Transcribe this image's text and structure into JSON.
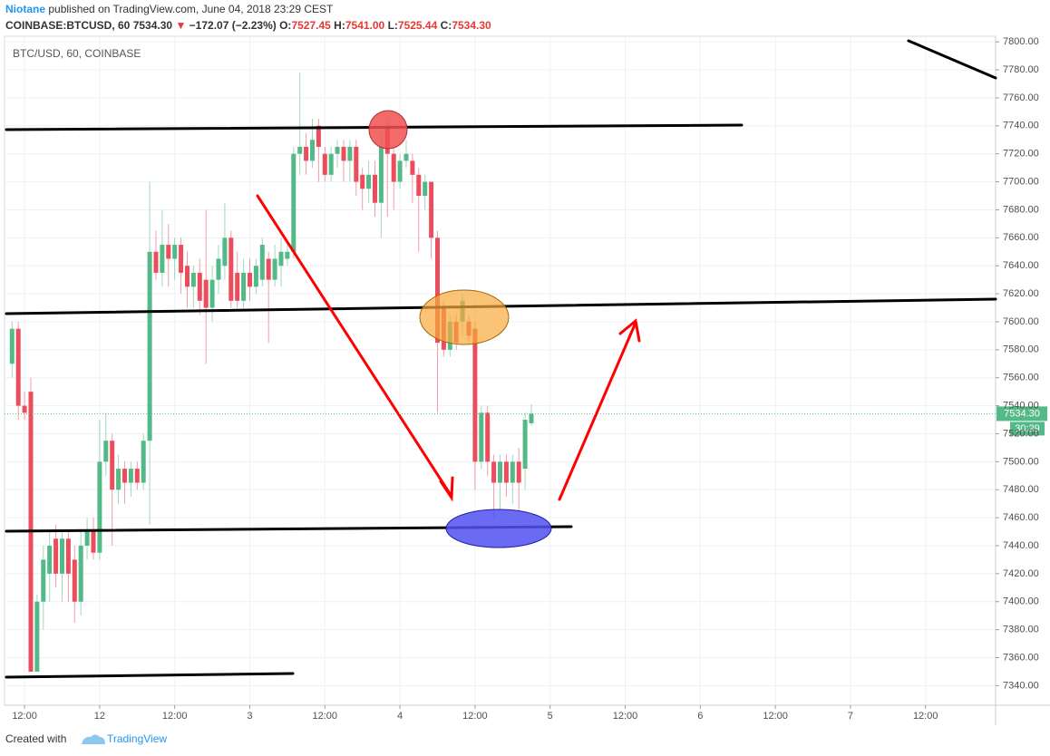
{
  "header": {
    "author": "Niotane",
    "published": "published on TradingView.com, June 04, 2018 23:29 CEST",
    "symbol": "COINBASE:BTCUSD, 60",
    "last": "7534.30",
    "arrow": "▼",
    "change": "−172.07 (−2.23%)",
    "o_label": "O:",
    "open": "7527.45",
    "h_label": "H:",
    "high": "7541.00",
    "l_label": "L:",
    "low": "7525.44",
    "c_label": "C:",
    "close": "7534.30"
  },
  "footer": {
    "created": "Created with",
    "brand": "TradingView"
  },
  "chart_data": {
    "type": "candlestick",
    "title": "BTC/USD, 60, COINBASE",
    "up_color": "#53b987",
    "down_color": "#eb4d5c",
    "grid": true,
    "x": [
      -2,
      -1,
      0,
      1,
      2,
      3,
      4,
      5,
      6,
      7,
      8,
      9,
      10,
      11,
      12,
      13,
      14,
      15,
      16,
      17,
      18,
      19,
      20,
      21,
      22,
      23,
      24,
      25,
      26,
      27,
      28,
      29,
      30,
      31,
      32,
      33,
      34,
      35,
      36,
      37,
      38,
      39,
      40,
      41,
      42,
      43,
      44,
      45,
      46,
      47,
      48,
      49,
      50,
      51,
      52,
      53,
      54,
      55,
      56,
      57,
      58,
      59,
      60,
      61,
      62,
      63,
      64,
      65,
      66,
      67,
      68,
      69,
      70,
      71,
      72,
      73,
      74,
      75,
      76,
      77,
      78,
      79,
      80,
      81
    ],
    "open": [
      7570,
      7595,
      7540,
      7550,
      7350,
      7400,
      7420,
      7445,
      7420,
      7445,
      7430,
      7400,
      7440,
      7450,
      7435,
      7500,
      7515,
      7480,
      7495,
      7485,
      7495,
      7485,
      7515,
      7650,
      7635,
      7655,
      7645,
      7655,
      7640,
      7625,
      7635,
      7630,
      7610,
      7630,
      7640,
      7660,
      7635,
      7615,
      7635,
      7625,
      7630,
      7645,
      7630,
      7640,
      7645,
      7650,
      7720,
      7725,
      7715,
      7740,
      7720,
      7705,
      7720,
      7725,
      7715,
      7725,
      7705,
      7695,
      7705,
      7685,
      7740,
      7720,
      7700,
      7715,
      7715,
      7705,
      7690,
      7700,
      7660,
      7610,
      7580,
      7600,
      7600,
      7600,
      7595,
      7500,
      7535,
      7500,
      7485,
      7500,
      7485,
      7500,
      7495,
      7527.45
    ],
    "high": [
      7600,
      7600,
      7550,
      7560,
      7405,
      7440,
      7450,
      7455,
      7450,
      7450,
      7440,
      7450,
      7460,
      7460,
      7530,
      7535,
      7520,
      7505,
      7500,
      7500,
      7500,
      7520,
      7700,
      7665,
      7680,
      7670,
      7660,
      7660,
      7650,
      7640,
      7645,
      7680,
      7640,
      7655,
      7685,
      7665,
      7650,
      7645,
      7645,
      7645,
      7660,
      7650,
      7655,
      7660,
      7655,
      7725,
      7778,
      7735,
      7745,
      7745,
      7725,
      7725,
      7730,
      7730,
      7730,
      7730,
      7710,
      7715,
      7715,
      7740,
      7745,
      7725,
      7720,
      7730,
      7720,
      7710,
      7705,
      7700,
      7665,
      7615,
      7605,
      7605,
      7620,
      7605,
      7600,
      7540,
      7540,
      7505,
      7505,
      7505,
      7505,
      7510,
      7535,
      7541
    ],
    "low": [
      7560,
      7530,
      7530,
      7350,
      7350,
      7380,
      7400,
      7410,
      7400,
      7400,
      7385,
      7390,
      7430,
      7430,
      7430,
      7490,
      7440,
      7470,
      7470,
      7475,
      7480,
      7480,
      7455,
      7630,
      7625,
      7625,
      7630,
      7620,
      7610,
      7610,
      7605,
      7570,
      7600,
      7620,
      7630,
      7610,
      7610,
      7610,
      7615,
      7620,
      7625,
      7585,
      7625,
      7625,
      7640,
      7645,
      7705,
      7705,
      7710,
      7700,
      7700,
      7700,
      7710,
      7700,
      7700,
      7690,
      7680,
      7685,
      7675,
      7660,
      7675,
      7680,
      7695,
      7710,
      7685,
      7650,
      7680,
      7645,
      7535,
      7575,
      7575,
      7580,
      7590,
      7585,
      7480,
      7495,
      7490,
      7460,
      7465,
      7475,
      7470,
      7465,
      7480,
      7525.44
    ],
    "close": [
      7595,
      7540,
      7535,
      7350,
      7400,
      7430,
      7440,
      7420,
      7445,
      7420,
      7400,
      7440,
      7450,
      7435,
      7500,
      7515,
      7480,
      7495,
      7485,
      7495,
      7485,
      7515,
      7650,
      7635,
      7655,
      7645,
      7655,
      7635,
      7625,
      7635,
      7615,
      7610,
      7630,
      7645,
      7660,
      7615,
      7615,
      7635,
      7625,
      7640,
      7655,
      7630,
      7645,
      7650,
      7650,
      7720,
      7725,
      7715,
      7730,
      7725,
      7705,
      7720,
      7725,
      7715,
      7725,
      7700,
      7695,
      7705,
      7685,
      7725,
      7720,
      7700,
      7715,
      7720,
      7705,
      7690,
      7700,
      7660,
      7585,
      7580,
      7600,
      7585,
      7615,
      7590,
      7500,
      7535,
      7500,
      7485,
      7500,
      7485,
      7500,
      7485,
      7530,
      7534.3
    ],
    "xlim": [
      -3.2,
      155.2
    ],
    "ylim": [
      7326,
      7804
    ],
    "xticks": [
      {
        "value": 0,
        "label": "12:00"
      },
      12,
      {
        "value": 24,
        "label": "12:00"
      },
      {
        "value": 36,
        "label": "3"
      },
      {
        "value": 48,
        "label": "12:00"
      },
      {
        "value": 60,
        "label": "4"
      },
      {
        "value": 72,
        "label": "12:00"
      },
      {
        "value": 84,
        "label": "5"
      },
      {
        "value": 96,
        "label": "12:00"
      },
      {
        "value": 108,
        "label": "6"
      },
      {
        "value": 120,
        "label": "12:00"
      },
      {
        "value": 132,
        "label": "7"
      },
      {
        "value": 144,
        "label": "12:00"
      }
    ],
    "yticks": [
      {
        "value": 7340,
        "label": "7340.00"
      },
      {
        "value": 7360,
        "label": "7360.00"
      },
      {
        "value": 7380,
        "label": "7380.00"
      },
      {
        "value": 7400,
        "label": "7400.00"
      },
      {
        "value": 7420,
        "label": "7420.00"
      },
      {
        "value": 7440,
        "label": "7440.00"
      },
      {
        "value": 7460,
        "label": "7460.00"
      },
      {
        "value": 7480,
        "label": "7480.00"
      },
      {
        "value": 7500,
        "label": "7500.00"
      },
      {
        "value": 7520,
        "label": "7520.00"
      },
      {
        "value": 7540,
        "label": "7540.00"
      },
      {
        "value": 7560,
        "label": "7560.00"
      },
      {
        "value": 7580,
        "label": "7580.00"
      },
      {
        "value": 7600,
        "label": "7600.00"
      },
      {
        "value": 7620,
        "label": "7620.00"
      },
      {
        "value": 7640,
        "label": "7640.00"
      },
      {
        "value": 7660,
        "label": "7660.00"
      },
      {
        "value": 7680,
        "label": "7680.00"
      },
      {
        "value": 7700,
        "label": "7700.00"
      },
      {
        "value": 7720,
        "label": "7720.00"
      },
      {
        "value": 7740,
        "label": "7740.00"
      },
      {
        "value": 7760,
        "label": "7760.00"
      },
      {
        "value": 7780,
        "label": "7780.00"
      },
      {
        "value": 7800,
        "label": "7800.00"
      }
    ],
    "last_price": 7534.3,
    "last_price_label": "7534.30",
    "countdown": "30:29"
  }
}
